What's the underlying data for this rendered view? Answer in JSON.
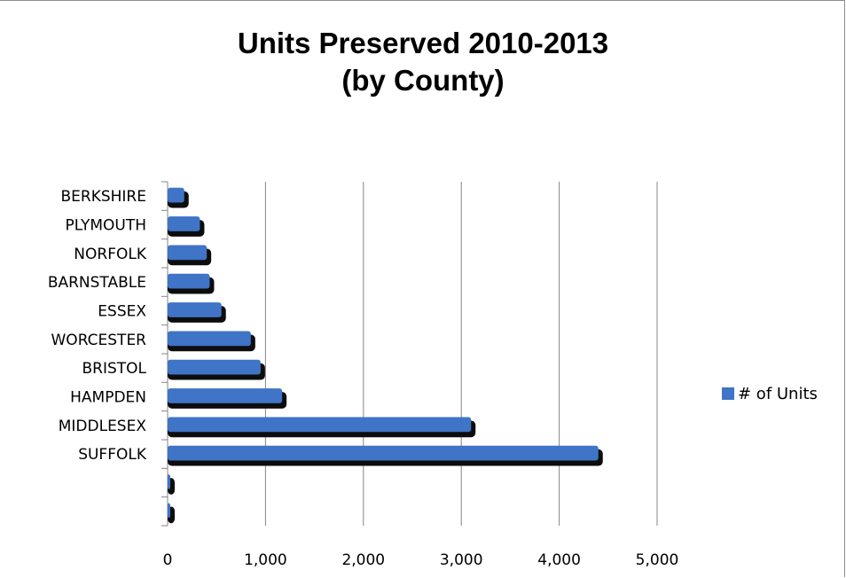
{
  "chart_data": {
    "type": "bar",
    "orientation": "horizontal",
    "title_lines": [
      "Units Preserved 2010-2013",
      "(by County)"
    ],
    "categories": [
      "BERKSHIRE",
      "PLYMOUTH",
      "NORFOLK",
      "BARNSTABLE",
      "ESSEX",
      "WORCESTER",
      "BRISTOL",
      "HAMPDEN",
      "MIDDLESEX",
      "SUFFOLK",
      "",
      ""
    ],
    "series": [
      {
        "name": "# of Units",
        "color": "#3F74C6",
        "values": [
          170,
          330,
          400,
          430,
          550,
          850,
          950,
          1170,
          3100,
          4400,
          15,
          15
        ]
      }
    ],
    "xlim": [
      0,
      5000
    ],
    "xticks": [
      0,
      1000,
      2000,
      3000,
      4000,
      5000
    ],
    "xtick_labels": [
      "0",
      "1,000",
      "2,000",
      "3,000",
      "4,000",
      "5,000"
    ],
    "grid": "vertical",
    "legend_position": "right",
    "xlabel": "",
    "ylabel": ""
  }
}
